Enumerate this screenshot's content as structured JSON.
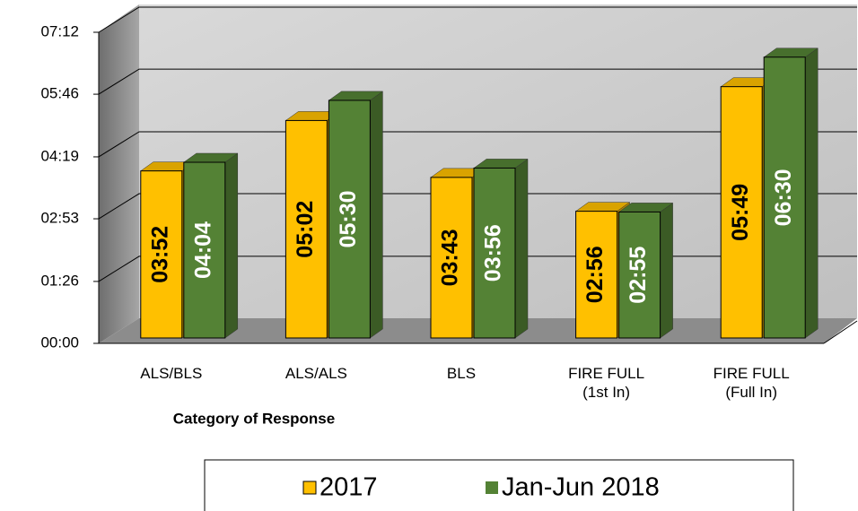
{
  "chart_data": {
    "type": "bar3d",
    "x_axis_label": "Category of Response",
    "categories": [
      "ALS/BLS",
      "ALS/ALS",
      "BLS",
      "FIRE FULL (1st In)",
      "FIRE FULL (Full In)"
    ],
    "series": [
      {
        "name": "2017",
        "color": "#ffc000",
        "values": [
          232,
          302,
          223,
          176,
          349
        ],
        "value_labels": [
          "03:52",
          "05:02",
          "03:43",
          "02:56",
          "05:49"
        ]
      },
      {
        "name": "Jan-Jun 2018",
        "color": "#548235",
        "values": [
          244,
          330,
          236,
          175,
          390
        ],
        "value_labels": [
          "04:04",
          "05:30",
          "03:56",
          "02:55",
          "06:30"
        ]
      }
    ],
    "ylim": [
      0,
      432
    ],
    "yticks": [
      {
        "value": 0,
        "label": "00:00"
      },
      {
        "value": 86,
        "label": "01:26"
      },
      {
        "value": 173,
        "label": "02:53"
      },
      {
        "value": 259,
        "label": "04:19"
      },
      {
        "value": 346,
        "label": "05:46"
      },
      {
        "value": 432,
        "label": "07:12"
      }
    ],
    "grid": true
  }
}
